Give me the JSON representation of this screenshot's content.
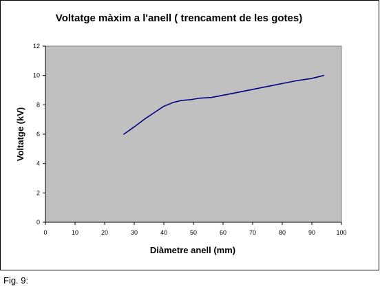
{
  "figure": {
    "caption": "Fig. 9:"
  },
  "colors": {
    "plot_background": "#c0c0c0",
    "series_line": "#000080",
    "frame": "#000000"
  },
  "chart_data": {
    "type": "line",
    "title": "Voltatge màxim a l'anell ( trencament de les gotes)",
    "xlabel": "Diàmetre anell (mm)",
    "ylabel": "Voltatge (kV)",
    "xlim": [
      0,
      100
    ],
    "ylim": [
      0,
      12
    ],
    "xticks": [
      0,
      10,
      20,
      30,
      40,
      50,
      60,
      70,
      80,
      90,
      100
    ],
    "yticks": [
      0,
      2,
      4,
      6,
      8,
      10,
      12
    ],
    "grid": false,
    "legend": "none",
    "series": [
      {
        "x": [
          26.5,
          30,
          34,
          37,
          40,
          43,
          46,
          49,
          52,
          56,
          60,
          65,
          70,
          75,
          80,
          85,
          90,
          94
        ],
        "y": [
          6.0,
          6.5,
          7.1,
          7.5,
          7.9,
          8.15,
          8.3,
          8.35,
          8.45,
          8.5,
          8.65,
          8.85,
          9.05,
          9.25,
          9.45,
          9.65,
          9.8,
          10.0
        ]
      }
    ]
  }
}
